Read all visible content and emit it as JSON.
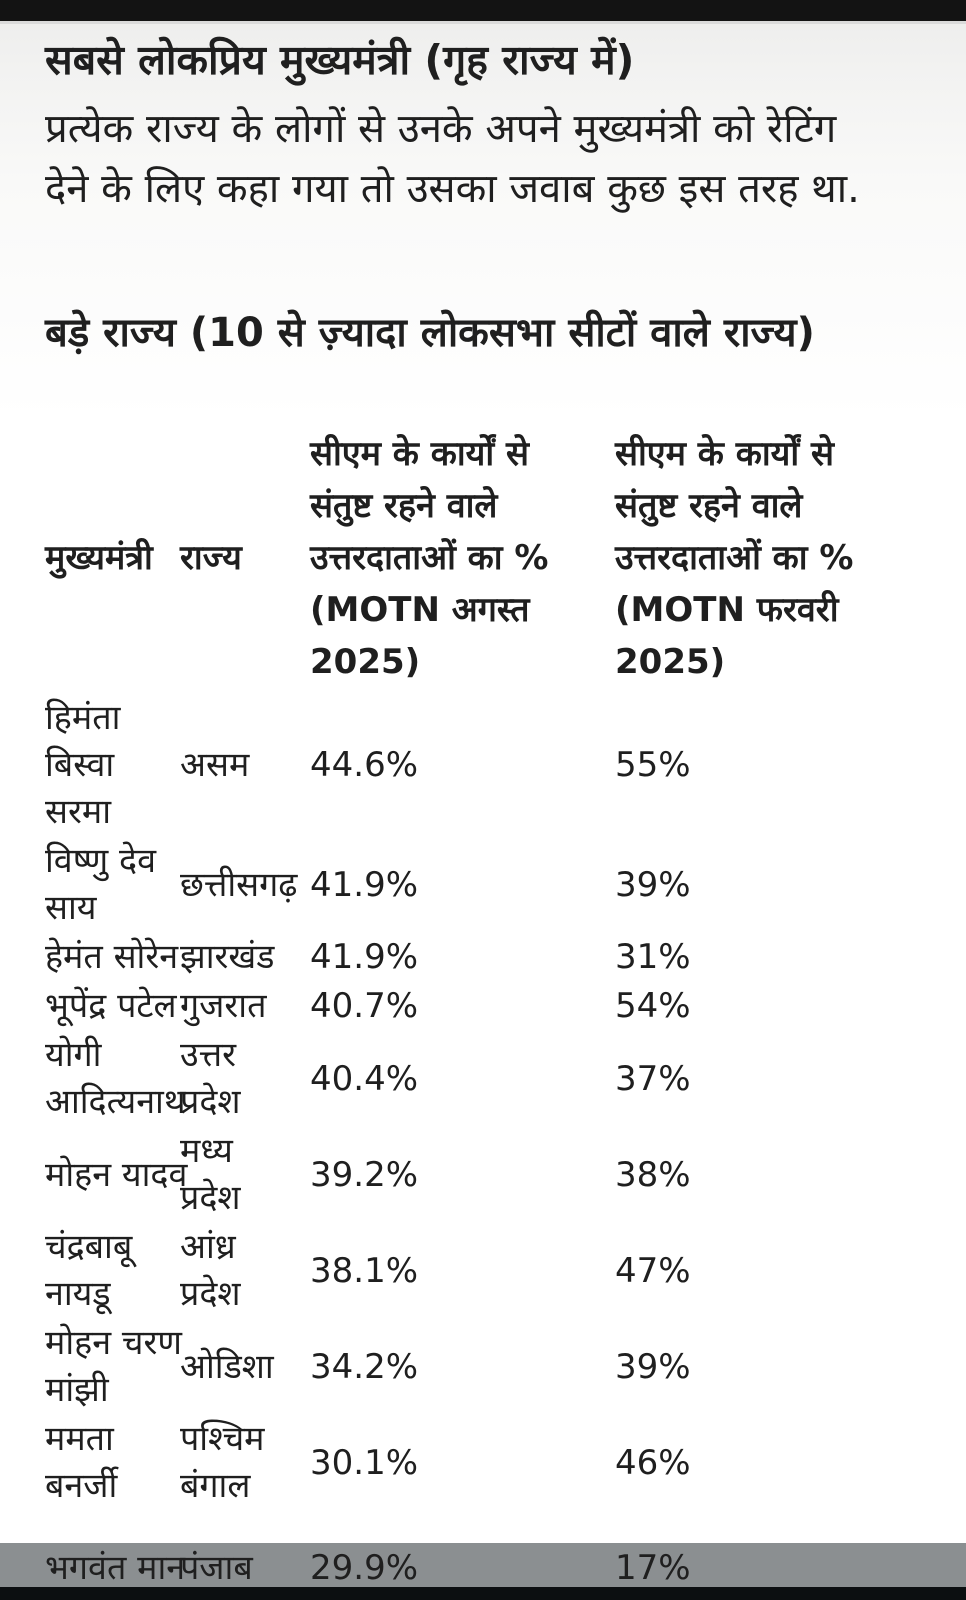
{
  "page": {
    "title": "सबसे लोकप्रिय मुख्यमंत्री (गृह राज्य में)",
    "intro": "प्रत्येक राज्य के लोगों से उनके अपने मुख्यमंत्री को रेटिंग\nदेने के लिए कहा गया तो उसका जवाब कुछ इस तरह था.",
    "section_heading": "बड़े राज्य (10 से ज़्यादा लोकसभा सीटों वाले राज्य)"
  },
  "table": {
    "headers": {
      "cm": "मुख्यमंत्री",
      "state": "राज्य",
      "aug": "सीएम के कार्यों से\nसंतुष्ट रहने वाले\nउत्तरदाताओं का %\n(MOTN अगस्त\n2025)",
      "feb": "सीएम के कार्यों से\nसंतुष्ट रहने वाले\nउत्तरदाताओं का %\n(MOTN फरवरी\n2025)"
    },
    "rows": [
      {
        "cm": "हिमंता\nबिस्वा\nसरमा",
        "state": "असम",
        "aug": "44.6%",
        "feb": "55%"
      },
      {
        "cm": "विष्णु देव\nसाय",
        "state": "छत्तीसगढ़",
        "aug": "41.9%",
        "feb": "39%"
      },
      {
        "cm": "हेमंत सोरेन",
        "state": "झारखंड",
        "aug": "41.9%",
        "feb": "31%"
      },
      {
        "cm": "भूपेंद्र पटेल",
        "state": "गुजरात",
        "aug": "40.7%",
        "feb": "54%"
      },
      {
        "cm": "योगी\nआदित्यनाथ",
        "state": "उत्तर\nप्रदेश",
        "aug": "40.4%",
        "feb": "37%"
      },
      {
        "cm": "मोहन यादव",
        "state": "मध्य\nप्रदेश",
        "aug": "39.2%",
        "feb": "38%"
      },
      {
        "cm": "चंद्रबाबू\nनायडू",
        "state": "आंध्र\nप्रदेश",
        "aug": "38.1%",
        "feb": "47%"
      },
      {
        "cm": "मोहन चरण\nमांझी",
        "state": "ओडिशा",
        "aug": "34.2%",
        "feb": "39%"
      },
      {
        "cm": "ममता\nबनर्जी",
        "state": "पश्चिम\nबंगाल",
        "aug": "30.1%",
        "feb": "46%"
      },
      {
        "cm": "भगवंत मान",
        "state": "पंजाब",
        "aug": "29.9%",
        "feb": "17%"
      }
    ]
  },
  "colors": {
    "top_bar": "#131313",
    "bottom_bar": "#0c0f11",
    "overlay_band": "#8b8f91",
    "text": "#1f1f1f",
    "background_top": "#eeeeed",
    "background_main": "#ffffff"
  }
}
